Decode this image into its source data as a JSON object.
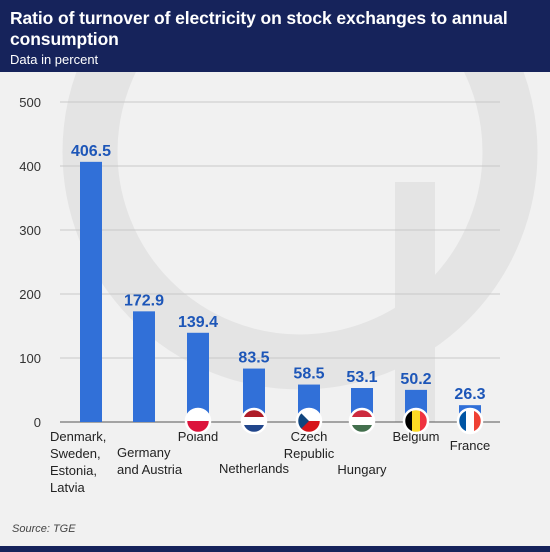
{
  "header": {
    "title": "Ratio of turnover of electricity on stock exchanges to annual consumption",
    "subtitle": "Data in percent"
  },
  "footer": {
    "source": "Source: TGE"
  },
  "colors": {
    "header_bg": "#16235b",
    "bar": "#3170d8",
    "value_label": "#1d56b8",
    "watermark": "#e4e4e4"
  },
  "chart_data": {
    "type": "bar",
    "title": "Ratio of turnover of electricity on stock exchanges to annual consumption",
    "subtitle": "Data in percent",
    "xlabel": "",
    "ylabel": "",
    "ylim": [
      0,
      500
    ],
    "yticks": [
      "0",
      "100",
      "200",
      "300",
      "400",
      "500"
    ],
    "grid": true,
    "categories": [
      [
        "Denmark,",
        "Sweden,",
        "Estonia,",
        "Latvia"
      ],
      [
        "Germany",
        "and Austria"
      ],
      [
        "Poland"
      ],
      [
        "Netherlands"
      ],
      [
        "Czech",
        "Republic"
      ],
      [
        "Hungary"
      ],
      [
        "Belgium"
      ],
      [
        "France"
      ]
    ],
    "values": [
      406.5,
      172.9,
      139.4,
      83.5,
      58.5,
      53.1,
      50.2,
      26.3
    ],
    "value_labels": [
      "406.5",
      "172.9",
      "139.4",
      "83.5",
      "58.5",
      "53.1",
      "50.2",
      "26.3"
    ],
    "flags": [
      "",
      "",
      "poland-flag-icon",
      "netherlands-flag-icon",
      "czech-flag-icon",
      "hungary-flag-icon",
      "belgium-flag-icon",
      "france-flag-icon"
    ]
  }
}
